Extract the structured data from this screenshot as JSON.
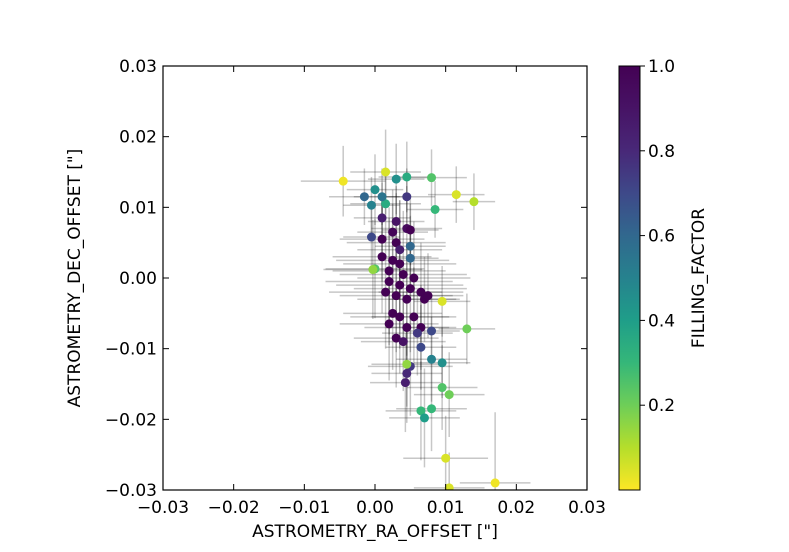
{
  "chart_data": {
    "type": "scatter",
    "xlabel": "ASTROMETRY_RA_OFFSET [\"]",
    "ylabel": "ASTROMETRY_DEC_OFFSET [\"]",
    "xlim": [
      -0.03,
      0.03
    ],
    "ylim": [
      -0.03,
      0.03
    ],
    "x_ticks": [
      "−0.03",
      "−0.02",
      "−0.01",
      "0.00",
      "0.01",
      "0.02",
      "0.03"
    ],
    "y_ticks": [
      "−0.03",
      "−0.02",
      "−0.01",
      "0.00",
      "0.01",
      "0.02",
      "0.03"
    ],
    "colorbar": {
      "label": "FILLING_FACTOR",
      "range": [
        0.0,
        1.0
      ],
      "ticks": [
        "0.2",
        "0.4",
        "0.6",
        "0.8",
        "1.0"
      ],
      "colormap": "viridis"
    },
    "error_bar_color": "#000000",
    "points": [
      {
        "x": -0.0045,
        "y": 0.0137,
        "xerr": 0.006,
        "yerr": 0.005,
        "c": 0.02
      },
      {
        "x": 0.0015,
        "y": 0.015,
        "xerr": 0.005,
        "yerr": 0.006,
        "c": 0.05
      },
      {
        "x": 0.0115,
        "y": 0.0118,
        "xerr": 0.004,
        "yerr": 0.004,
        "c": 0.05
      },
      {
        "x": 0.014,
        "y": 0.0108,
        "xerr": 0.003,
        "yerr": 0.004,
        "c": 0.1
      },
      {
        "x": 0.008,
        "y": 0.0142,
        "xerr": 0.005,
        "yerr": 0.004,
        "c": 0.25
      },
      {
        "x": 0.0045,
        "y": 0.0143,
        "xerr": 0.004,
        "yerr": 0.005,
        "c": 0.35
      },
      {
        "x": 0.003,
        "y": 0.014,
        "xerr": 0.004,
        "yerr": 0.005,
        "c": 0.45
      },
      {
        "x": 0.0,
        "y": 0.0125,
        "xerr": 0.004,
        "yerr": 0.005,
        "c": 0.45
      },
      {
        "x": 0.0015,
        "y": 0.0105,
        "xerr": 0.005,
        "yerr": 0.005,
        "c": 0.35
      },
      {
        "x": -0.0015,
        "y": 0.0115,
        "xerr": 0.005,
        "yerr": 0.004,
        "c": 0.6
      },
      {
        "x": 0.001,
        "y": 0.0115,
        "xerr": 0.004,
        "yerr": 0.004,
        "c": 0.55
      },
      {
        "x": -0.0005,
        "y": 0.0103,
        "xerr": 0.004,
        "yerr": 0.004,
        "c": 0.5
      },
      {
        "x": 0.0045,
        "y": 0.0115,
        "xerr": 0.004,
        "yerr": 0.004,
        "c": 0.75
      },
      {
        "x": 0.0085,
        "y": 0.0097,
        "xerr": 0.004,
        "yerr": 0.004,
        "c": 0.3
      },
      {
        "x": 0.001,
        "y": 0.0085,
        "xerr": 0.004,
        "yerr": 0.005,
        "c": 0.85
      },
      {
        "x": 0.003,
        "y": 0.008,
        "xerr": 0.004,
        "yerr": 0.005,
        "c": 0.9
      },
      {
        "x": 0.0025,
        "y": 0.0065,
        "xerr": 0.005,
        "yerr": 0.006,
        "c": 0.97
      },
      {
        "x": 0.0045,
        "y": 0.007,
        "xerr": 0.005,
        "yerr": 0.006,
        "c": 0.95
      },
      {
        "x": 0.005,
        "y": 0.0068,
        "xerr": 0.004,
        "yerr": 0.005,
        "c": 1.0
      },
      {
        "x": -0.0005,
        "y": 0.0058,
        "xerr": 0.004,
        "yerr": 0.005,
        "c": 0.7
      },
      {
        "x": 0.001,
        "y": 0.0055,
        "xerr": 0.006,
        "yerr": 0.006,
        "c": 1.0
      },
      {
        "x": 0.003,
        "y": 0.005,
        "xerr": 0.007,
        "yerr": 0.007,
        "c": 1.0
      },
      {
        "x": 0.0035,
        "y": 0.004,
        "xerr": 0.006,
        "yerr": 0.007,
        "c": 0.85
      },
      {
        "x": 0.005,
        "y": 0.0045,
        "xerr": 0.005,
        "yerr": 0.006,
        "c": 0.6
      },
      {
        "x": 0.005,
        "y": 0.0028,
        "xerr": 0.004,
        "yerr": 0.006,
        "c": 0.6
      },
      {
        "x": 0.001,
        "y": 0.003,
        "xerr": 0.007,
        "yerr": 0.008,
        "c": 1.0
      },
      {
        "x": 0.0025,
        "y": 0.0025,
        "xerr": 0.008,
        "yerr": 0.008,
        "c": 1.0
      },
      {
        "x": 0.0035,
        "y": 0.002,
        "xerr": 0.008,
        "yerr": 0.009,
        "c": 1.0
      },
      {
        "x": 0.0,
        "y": 0.0013,
        "xerr": 0.007,
        "yerr": 0.007,
        "c": 0.25
      },
      {
        "x": -0.0003,
        "y": 0.0012,
        "xerr": 0.007,
        "yerr": 0.007,
        "c": 0.15
      },
      {
        "x": 0.002,
        "y": 0.001,
        "xerr": 0.008,
        "yerr": 0.009,
        "c": 1.0
      },
      {
        "x": 0.004,
        "y": 0.0005,
        "xerr": 0.009,
        "yerr": 0.009,
        "c": 1.0
      },
      {
        "x": 0.0055,
        "y": 0.0,
        "xerr": 0.008,
        "yerr": 0.008,
        "c": 1.0
      },
      {
        "x": 0.002,
        "y": -0.0005,
        "xerr": 0.009,
        "yerr": 0.009,
        "c": 1.0
      },
      {
        "x": 0.0035,
        "y": -0.001,
        "xerr": 0.009,
        "yerr": 0.009,
        "c": 1.0
      },
      {
        "x": 0.005,
        "y": -0.0015,
        "xerr": 0.008,
        "yerr": 0.009,
        "c": 1.0
      },
      {
        "x": 0.0015,
        "y": -0.002,
        "xerr": 0.008,
        "yerr": 0.008,
        "c": 1.0
      },
      {
        "x": 0.0065,
        "y": -0.002,
        "xerr": 0.006,
        "yerr": 0.007,
        "c": 1.0
      },
      {
        "x": 0.003,
        "y": -0.0025,
        "xerr": 0.008,
        "yerr": 0.008,
        "c": 1.0
      },
      {
        "x": 0.0045,
        "y": -0.003,
        "xerr": 0.007,
        "yerr": 0.008,
        "c": 1.0
      },
      {
        "x": 0.007,
        "y": -0.003,
        "xerr": 0.005,
        "yerr": 0.006,
        "c": 1.0
      },
      {
        "x": 0.0075,
        "y": -0.0025,
        "xerr": 0.005,
        "yerr": 0.006,
        "c": 1.0
      },
      {
        "x": 0.0095,
        "y": -0.0033,
        "xerr": 0.004,
        "yerr": 0.005,
        "c": 0.05
      },
      {
        "x": 0.0025,
        "y": -0.005,
        "xerr": 0.007,
        "yerr": 0.008,
        "c": 1.0
      },
      {
        "x": 0.0035,
        "y": -0.0055,
        "xerr": 0.007,
        "yerr": 0.008,
        "c": 1.0
      },
      {
        "x": 0.0055,
        "y": -0.0055,
        "xerr": 0.006,
        "yerr": 0.007,
        "c": 1.0
      },
      {
        "x": 0.002,
        "y": -0.0065,
        "xerr": 0.007,
        "yerr": 0.008,
        "c": 1.0
      },
      {
        "x": 0.0045,
        "y": -0.007,
        "xerr": 0.006,
        "yerr": 0.008,
        "c": 1.0
      },
      {
        "x": 0.0065,
        "y": -0.007,
        "xerr": 0.005,
        "yerr": 0.006,
        "c": 1.0
      },
      {
        "x": 0.006,
        "y": -0.0078,
        "xerr": 0.005,
        "yerr": 0.006,
        "c": 0.75
      },
      {
        "x": 0.008,
        "y": -0.0075,
        "xerr": 0.004,
        "yerr": 0.005,
        "c": 0.7
      },
      {
        "x": 0.013,
        "y": -0.0072,
        "xerr": 0.004,
        "yerr": 0.005,
        "c": 0.2
      },
      {
        "x": 0.003,
        "y": -0.0085,
        "xerr": 0.006,
        "yerr": 0.007,
        "c": 1.0
      },
      {
        "x": 0.004,
        "y": -0.009,
        "xerr": 0.006,
        "yerr": 0.007,
        "c": 0.9
      },
      {
        "x": 0.0065,
        "y": -0.0098,
        "xerr": 0.005,
        "yerr": 0.006,
        "c": 0.7
      },
      {
        "x": 0.008,
        "y": -0.0115,
        "xerr": 0.005,
        "yerr": 0.006,
        "c": 0.5
      },
      {
        "x": 0.0095,
        "y": -0.012,
        "xerr": 0.004,
        "yerr": 0.005,
        "c": 0.45
      },
      {
        "x": 0.005,
        "y": -0.0125,
        "xerr": 0.006,
        "yerr": 0.007,
        "c": 0.75
      },
      {
        "x": 0.0045,
        "y": -0.0122,
        "xerr": 0.005,
        "yerr": 0.006,
        "c": 0.15
      },
      {
        "x": 0.0045,
        "y": -0.0135,
        "xerr": 0.005,
        "yerr": 0.007,
        "c": 0.8
      },
      {
        "x": 0.0043,
        "y": -0.0148,
        "xerr": 0.005,
        "yerr": 0.007,
        "c": 0.85
      },
      {
        "x": 0.0095,
        "y": -0.0155,
        "xerr": 0.005,
        "yerr": 0.006,
        "c": 0.25
      },
      {
        "x": 0.0105,
        "y": -0.0165,
        "xerr": 0.005,
        "yerr": 0.006,
        "c": 0.2
      },
      {
        "x": 0.0065,
        "y": -0.0188,
        "xerr": 0.005,
        "yerr": 0.007,
        "c": 0.3
      },
      {
        "x": 0.008,
        "y": -0.0185,
        "xerr": 0.005,
        "yerr": 0.006,
        "c": 0.3
      },
      {
        "x": 0.007,
        "y": -0.0198,
        "xerr": 0.005,
        "yerr": 0.007,
        "c": 0.4
      },
      {
        "x": 0.01,
        "y": -0.0255,
        "xerr": 0.006,
        "yerr": 0.006,
        "c": 0.05
      },
      {
        "x": 0.0105,
        "y": -0.0297,
        "xerr": 0.005,
        "yerr": 0.005,
        "c": 0.05
      },
      {
        "x": 0.017,
        "y": -0.029,
        "xerr": 0.005,
        "yerr": 0.01,
        "c": 0.02
      }
    ]
  }
}
